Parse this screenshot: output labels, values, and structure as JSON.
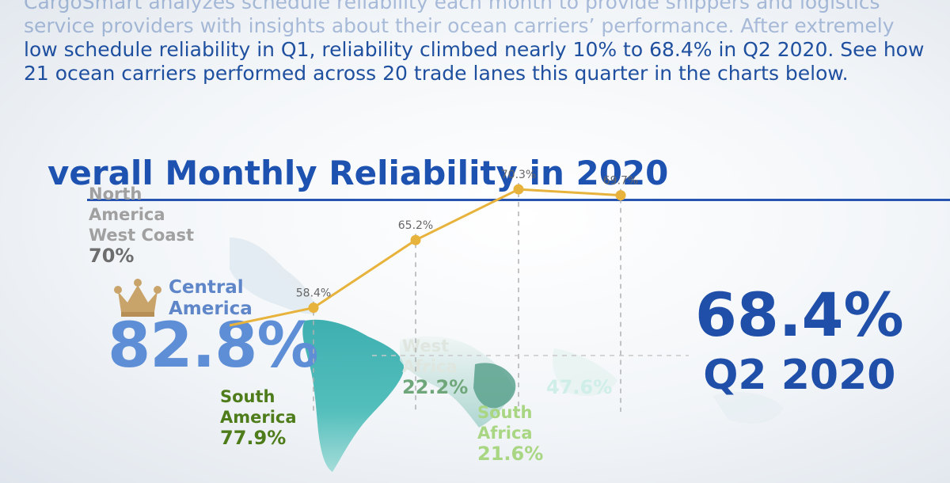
{
  "intro": {
    "lines": [
      "CargoSmart analyzes schedule reliability each month to provide shippers and logistics",
      "service providers with insights about their ocean carriers’ performance. After extremely",
      "low schedule reliability in Q1, reliability climbed nearly 10% to 68.4% in Q2 2020. See how",
      "21 ocean carriers performed across 20 trade lanes this quarter in the charts below."
    ]
  },
  "title": "verall Monthly Reliability in 2020",
  "regions": {
    "north_america_west_coast": {
      "line1": "North",
      "line2": "America",
      "line3": "West Coast",
      "pct": "70%"
    },
    "central_america": {
      "line1": "Central",
      "line2": "America",
      "pct": "82.8%"
    },
    "south_america": {
      "line1": "South",
      "line2": "America",
      "pct": "77.9%"
    },
    "west_africa": {
      "line1": "West",
      "line2": "Africa",
      "pct": "22.2%"
    },
    "south_africa": {
      "line1": "South",
      "line2": "Africa",
      "pct": "21.6%"
    },
    "east_africa": {
      "pct": "47.6%"
    }
  },
  "kpi": {
    "value": "68.4%",
    "period": "Q2 2020"
  },
  "colors": {
    "line": "#e8b33c",
    "title": "#1d52b1",
    "kpi": "#1f4fa8",
    "map_teal": "#35b3b0"
  },
  "chart_data": {
    "type": "line",
    "title": "verall Monthly Reliability in 2020",
    "xlabel": "",
    "ylabel": "",
    "series": [
      {
        "values": [
          null,
          58.4,
          65.2,
          70.3,
          69.7
        ],
        "labels": [
          "",
          "58.4%",
          "65.2%",
          "70.3%",
          "69.7%"
        ]
      }
    ],
    "ylim": [
      40,
      75
    ],
    "grid": false
  }
}
